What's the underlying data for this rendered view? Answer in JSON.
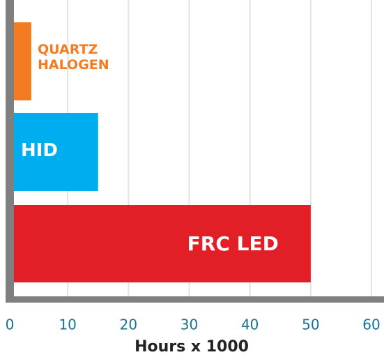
{
  "chart_data": {
    "type": "bar",
    "orientation": "horizontal",
    "xlabel": "Hours x 1000",
    "categories": [
      "QUARTZ HALOGEN",
      "HID",
      "FRC LED"
    ],
    "values": [
      4,
      15,
      50
    ],
    "colors": [
      "#f37b21",
      "#00aeef",
      "#e21e26"
    ],
    "xlim": [
      0,
      60
    ],
    "xticks": [
      0,
      10,
      20,
      30,
      40,
      50,
      60
    ],
    "grid": true
  }
}
